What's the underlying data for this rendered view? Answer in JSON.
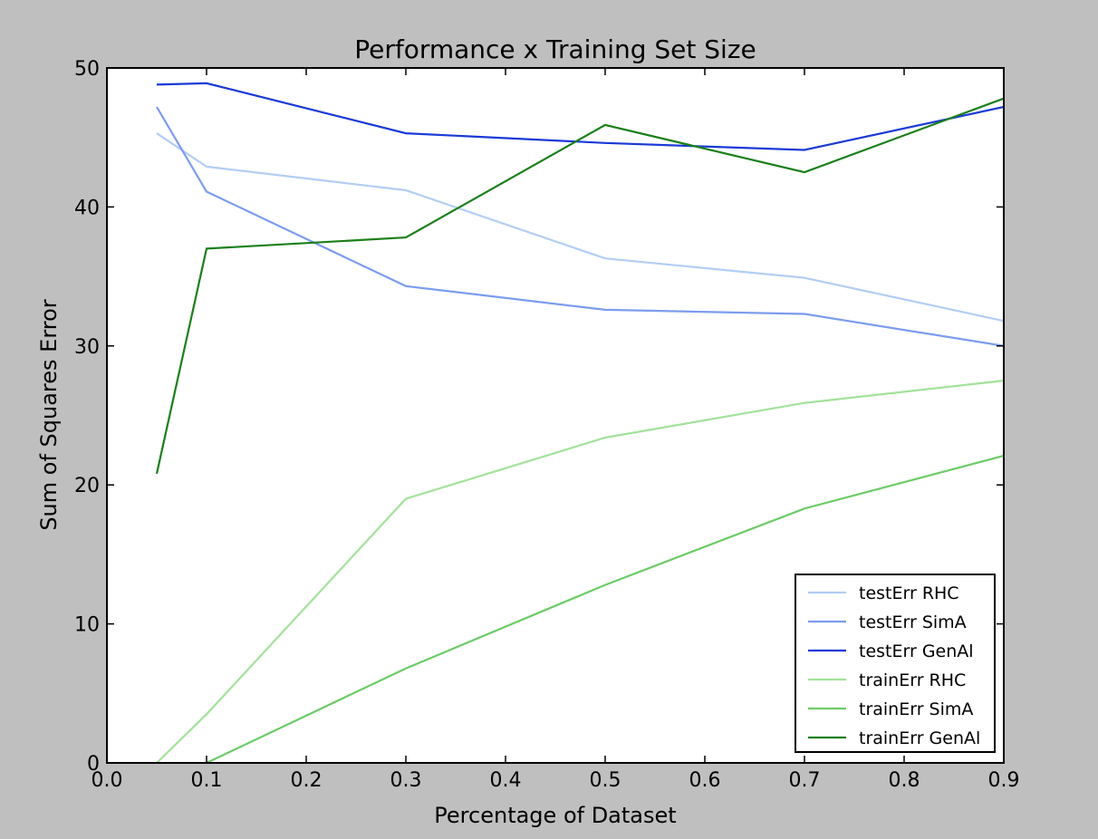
{
  "chart_data": {
    "type": "line",
    "title": "Performance x Training Set Size",
    "xlabel": "Percentage of Dataset",
    "ylabel": "Sum of Squares Error",
    "xlim": [
      0.0,
      0.9
    ],
    "ylim": [
      0,
      50
    ],
    "xticks": [
      0.0,
      0.1,
      0.2,
      0.3,
      0.4,
      0.5,
      0.6,
      0.7,
      0.8,
      0.9
    ],
    "xtick_labels": [
      "0.0",
      "0.1",
      "0.2",
      "0.3",
      "0.4",
      "0.5",
      "0.6",
      "0.7",
      "0.8",
      "0.9"
    ],
    "yticks": [
      0,
      10,
      20,
      30,
      40,
      50
    ],
    "ytick_labels": [
      "0",
      "10",
      "20",
      "30",
      "40",
      "50"
    ],
    "grid": false,
    "legend_position": "lower-right",
    "series": [
      {
        "name": "testErr RHC",
        "color": "#b3cdf5",
        "x": [
          0.05,
          0.1,
          0.3,
          0.5,
          0.7,
          0.9
        ],
        "y": [
          45.3,
          42.9,
          41.2,
          36.3,
          34.9,
          31.8
        ]
      },
      {
        "name": "testErr SimA",
        "color": "#7c9cee",
        "x": [
          0.05,
          0.1,
          0.3,
          0.5,
          0.7,
          0.9
        ],
        "y": [
          47.2,
          41.1,
          34.3,
          32.6,
          32.3,
          30.0
        ]
      },
      {
        "name": "testErr GenAl",
        "color": "#1a3ad6",
        "x": [
          0.05,
          0.1,
          0.3,
          0.5,
          0.7,
          0.9
        ],
        "y": [
          48.8,
          48.9,
          45.3,
          44.6,
          44.1,
          47.2
        ]
      },
      {
        "name": "trainErr RHC",
        "color": "#a3e29b",
        "x": [
          0.05,
          0.1,
          0.3,
          0.5,
          0.7,
          0.9
        ],
        "y": [
          0.0,
          3.5,
          19.0,
          23.4,
          25.9,
          27.5
        ]
      },
      {
        "name": "trainErr SimA",
        "color": "#6ccb67",
        "x": [
          0.05,
          0.1,
          0.3,
          0.5,
          0.7,
          0.9
        ],
        "y": [
          -1.0,
          0.0,
          6.8,
          12.8,
          18.3,
          22.1
        ]
      },
      {
        "name": "trainErr GenAl",
        "color": "#1a7f1a",
        "x": [
          0.05,
          0.1,
          0.3,
          0.5,
          0.7,
          0.9
        ],
        "y": [
          20.8,
          37.0,
          37.8,
          45.9,
          42.5,
          47.8
        ]
      }
    ]
  }
}
